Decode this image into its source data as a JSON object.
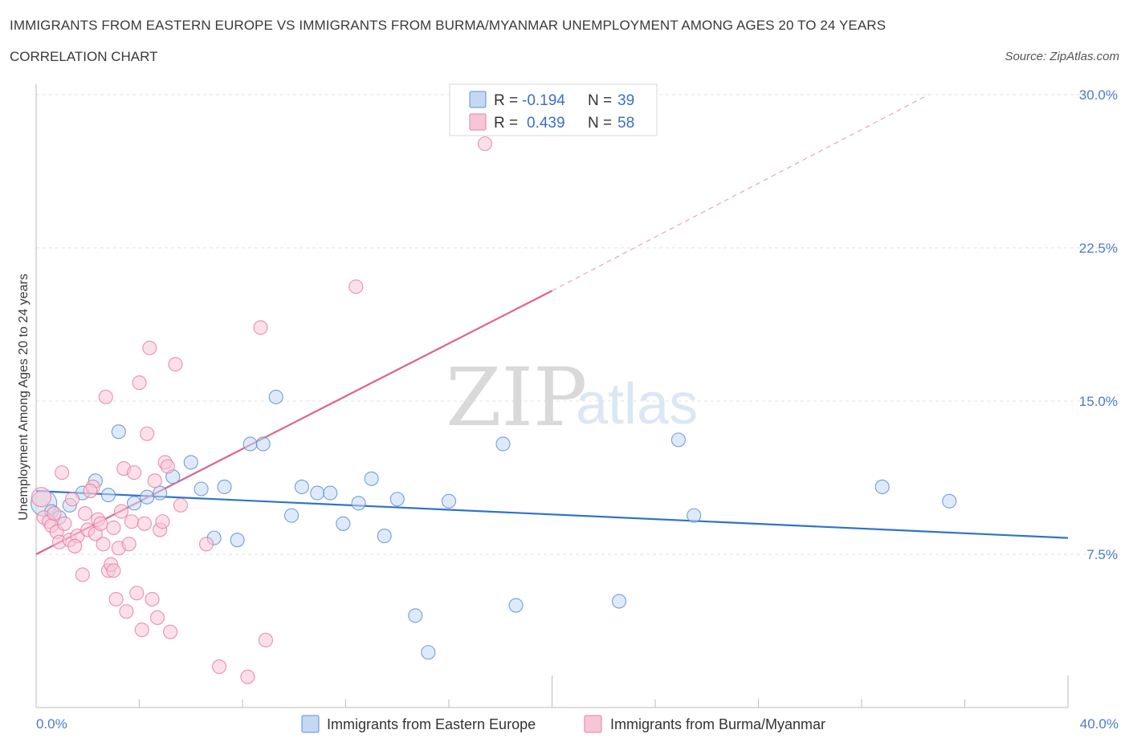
{
  "header": {
    "title": "IMMIGRANTS FROM EASTERN EUROPE VS IMMIGRANTS FROM BURMA/MYANMAR UNEMPLOYMENT AMONG AGES 20 TO 24 YEARS",
    "subtitle": "CORRELATION CHART",
    "source": "Source: ZipAtlas.com"
  },
  "watermark": {
    "zip": "ZIP",
    "atlas": "atlas"
  },
  "colors": {
    "eastern_europe": "#5b8fd6",
    "eastern_europe_fill": "#c5d8f3",
    "burma": "#e87ea1",
    "burma_fill": "#f7c6d6",
    "tick_text": "#4a7cc7",
    "grid": "#e0e0e0"
  },
  "stats": {
    "r_label": "R =",
    "n_label": "N =",
    "eastern_europe": {
      "r": "-0.194",
      "n": "39"
    },
    "burma": {
      "r": "0.439",
      "n": "58"
    }
  },
  "chart_data": {
    "type": "scatter",
    "title": "IMMIGRANTS FROM EASTERN EUROPE VS IMMIGRANTS FROM BURMA/MYANMAR UNEMPLOYMENT AMONG AGES 20 TO 24 YEARS",
    "subtitle": "CORRELATION CHART",
    "xlabel": "",
    "ylabel": "Unemployment Among Ages 20 to 24 years",
    "xlim": [
      0,
      40
    ],
    "ylim": [
      0,
      30
    ],
    "x_tick_labels": [
      "0.0%",
      "40.0%"
    ],
    "y_ticks": [
      7.5,
      15,
      22.5,
      30
    ],
    "y_tick_labels": [
      "7.5%",
      "15.0%",
      "22.5%",
      "30.0%"
    ],
    "grid": "horizontal dashed",
    "legend_position": "bottom",
    "series": [
      {
        "name": "Immigrants from Eastern Europe",
        "color": "#5b8fd6",
        "points": [
          [
            0.3,
            10.0
          ],
          [
            0.6,
            9.6
          ],
          [
            0.9,
            9.3
          ],
          [
            1.3,
            9.9
          ],
          [
            1.8,
            10.5
          ],
          [
            2.3,
            11.1
          ],
          [
            2.8,
            10.4
          ],
          [
            3.2,
            13.5
          ],
          [
            3.8,
            10.0
          ],
          [
            4.3,
            10.3
          ],
          [
            4.8,
            10.5
          ],
          [
            5.3,
            11.3
          ],
          [
            6.0,
            12.0
          ],
          [
            6.4,
            10.7
          ],
          [
            6.9,
            8.3
          ],
          [
            7.3,
            10.8
          ],
          [
            7.8,
            8.2
          ],
          [
            8.3,
            12.9
          ],
          [
            8.8,
            12.9
          ],
          [
            9.3,
            15.2
          ],
          [
            9.9,
            9.4
          ],
          [
            10.3,
            10.8
          ],
          [
            10.9,
            10.5
          ],
          [
            11.4,
            10.5
          ],
          [
            11.9,
            9.0
          ],
          [
            12.5,
            10.0
          ],
          [
            13.0,
            11.2
          ],
          [
            13.5,
            8.4
          ],
          [
            14.0,
            10.2
          ],
          [
            14.7,
            4.5
          ],
          [
            15.2,
            2.7
          ],
          [
            16.0,
            10.1
          ],
          [
            18.1,
            12.9
          ],
          [
            18.6,
            5.0
          ],
          [
            22.6,
            5.2
          ],
          [
            24.9,
            13.1
          ],
          [
            25.5,
            9.4
          ],
          [
            32.8,
            10.8
          ],
          [
            35.4,
            10.1
          ]
        ],
        "trend": {
          "x": [
            0,
            40
          ],
          "y": [
            10.6,
            8.3
          ],
          "style": "solid"
        }
      },
      {
        "name": "Immigrants from Burma/Myanmar",
        "color": "#e87ea1",
        "points": [
          [
            0.2,
            10.3
          ],
          [
            0.3,
            9.3
          ],
          [
            0.5,
            9.1
          ],
          [
            0.6,
            8.9
          ],
          [
            0.7,
            9.5
          ],
          [
            0.8,
            8.6
          ],
          [
            0.9,
            8.1
          ],
          [
            1.0,
            11.5
          ],
          [
            1.1,
            9.0
          ],
          [
            1.3,
            8.2
          ],
          [
            1.4,
            10.2
          ],
          [
            1.6,
            8.4
          ],
          [
            1.8,
            6.5
          ],
          [
            1.9,
            9.5
          ],
          [
            2.0,
            8.7
          ],
          [
            2.2,
            10.8
          ],
          [
            2.3,
            8.5
          ],
          [
            2.4,
            9.2
          ],
          [
            2.5,
            9.0
          ],
          [
            2.6,
            8.0
          ],
          [
            2.7,
            15.2
          ],
          [
            2.8,
            6.7
          ],
          [
            2.9,
            7.0
          ],
          [
            3.0,
            6.7
          ],
          [
            3.1,
            5.3
          ],
          [
            3.2,
            7.8
          ],
          [
            3.3,
            9.6
          ],
          [
            3.4,
            11.7
          ],
          [
            3.5,
            4.7
          ],
          [
            3.6,
            8.0
          ],
          [
            3.7,
            9.1
          ],
          [
            3.8,
            11.5
          ],
          [
            3.9,
            5.6
          ],
          [
            4.0,
            15.9
          ],
          [
            4.1,
            3.8
          ],
          [
            4.2,
            9.0
          ],
          [
            4.3,
            13.4
          ],
          [
            4.4,
            17.6
          ],
          [
            4.5,
            5.3
          ],
          [
            4.6,
            11.1
          ],
          [
            4.7,
            4.4
          ],
          [
            4.8,
            8.7
          ],
          [
            4.9,
            9.1
          ],
          [
            5.0,
            12.0
          ],
          [
            5.1,
            11.8
          ],
          [
            5.2,
            3.7
          ],
          [
            5.4,
            16.8
          ],
          [
            5.6,
            9.9
          ],
          [
            6.6,
            8.0
          ],
          [
            7.1,
            2.0
          ],
          [
            8.2,
            1.5
          ],
          [
            8.7,
            18.6
          ],
          [
            8.9,
            3.3
          ],
          [
            12.4,
            20.6
          ],
          [
            17.4,
            27.6
          ],
          [
            1.5,
            7.9
          ],
          [
            2.1,
            10.6
          ],
          [
            3.0,
            8.8
          ]
        ],
        "trend": {
          "x": [
            0,
            20
          ],
          "y": [
            7.5,
            20.4
          ],
          "style": "solid",
          "extension": {
            "x": [
              20,
              34.6
            ],
            "y": [
              20.4,
              30.0
            ],
            "style": "dashed"
          }
        }
      }
    ]
  }
}
